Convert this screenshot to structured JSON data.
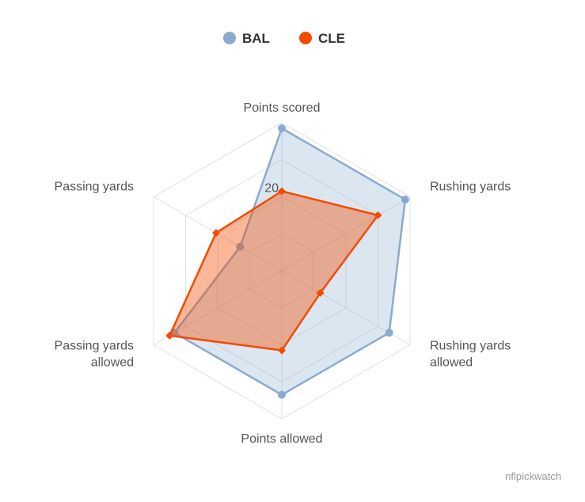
{
  "chart_data": {
    "type": "radar",
    "title": "",
    "axes": [
      "Points scored",
      "Rushing yards",
      "Rushing yards\nallowed",
      "Points allowed",
      "Passing yards\nallowed",
      "Passing yards"
    ],
    "rlim": [
      0,
      40
    ],
    "tick_label": "20",
    "grid": true,
    "legend_position": "top-center",
    "series": [
      {
        "name": "BAL",
        "values": [
          38.5,
          38.5,
          33.5,
          33.5,
          33.5,
          13
        ],
        "color": "#8aabcd",
        "marker": "circle"
      },
      {
        "name": "CLE",
        "values": [
          21.5,
          30,
          12,
          21.5,
          35,
          20.5
        ],
        "color": "#f24b00",
        "marker": "diamond"
      }
    ]
  },
  "credit": "nflpickwatch"
}
